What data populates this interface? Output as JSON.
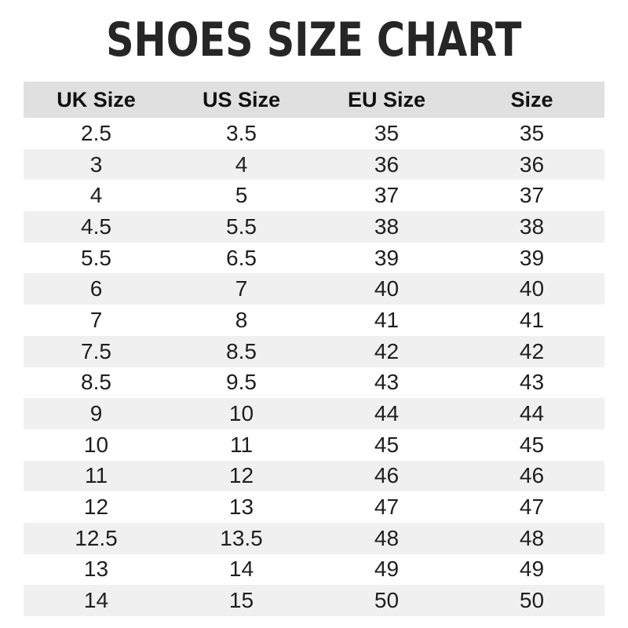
{
  "title": "SHOES SIZE CHART",
  "chart_data": {
    "type": "table",
    "title": "SHOES SIZE CHART",
    "columns": [
      "UK Size",
      "US Size",
      "EU Size",
      "Size"
    ],
    "rows": [
      [
        "2.5",
        "3.5",
        "35",
        "35"
      ],
      [
        "3",
        "4",
        "36",
        "36"
      ],
      [
        "4",
        "5",
        "37",
        "37"
      ],
      [
        "4.5",
        "5.5",
        "38",
        "38"
      ],
      [
        "5.5",
        "6.5",
        "39",
        "39"
      ],
      [
        "6",
        "7",
        "40",
        "40"
      ],
      [
        "7",
        "8",
        "41",
        "41"
      ],
      [
        "7.5",
        "8.5",
        "42",
        "42"
      ],
      [
        "8.5",
        "9.5",
        "43",
        "43"
      ],
      [
        "9",
        "10",
        "44",
        "44"
      ],
      [
        "10",
        "11",
        "45",
        "45"
      ],
      [
        "11",
        "12",
        "46",
        "46"
      ],
      [
        "12",
        "13",
        "47",
        "47"
      ],
      [
        "12.5",
        "13.5",
        "48",
        "48"
      ],
      [
        "13",
        "14",
        "49",
        "49"
      ],
      [
        "14",
        "15",
        "50",
        "50"
      ]
    ],
    "layout": {
      "stripe_pattern": "even rows shaded",
      "grid": false,
      "alignment": "center"
    }
  },
  "colors": {
    "page_background": "#ffffff",
    "title_text": "#262626",
    "header_background": "#e0e0e0",
    "header_text": "#111111",
    "stripe_background": "#f0f0f0",
    "cell_text": "#1f1f1f"
  }
}
